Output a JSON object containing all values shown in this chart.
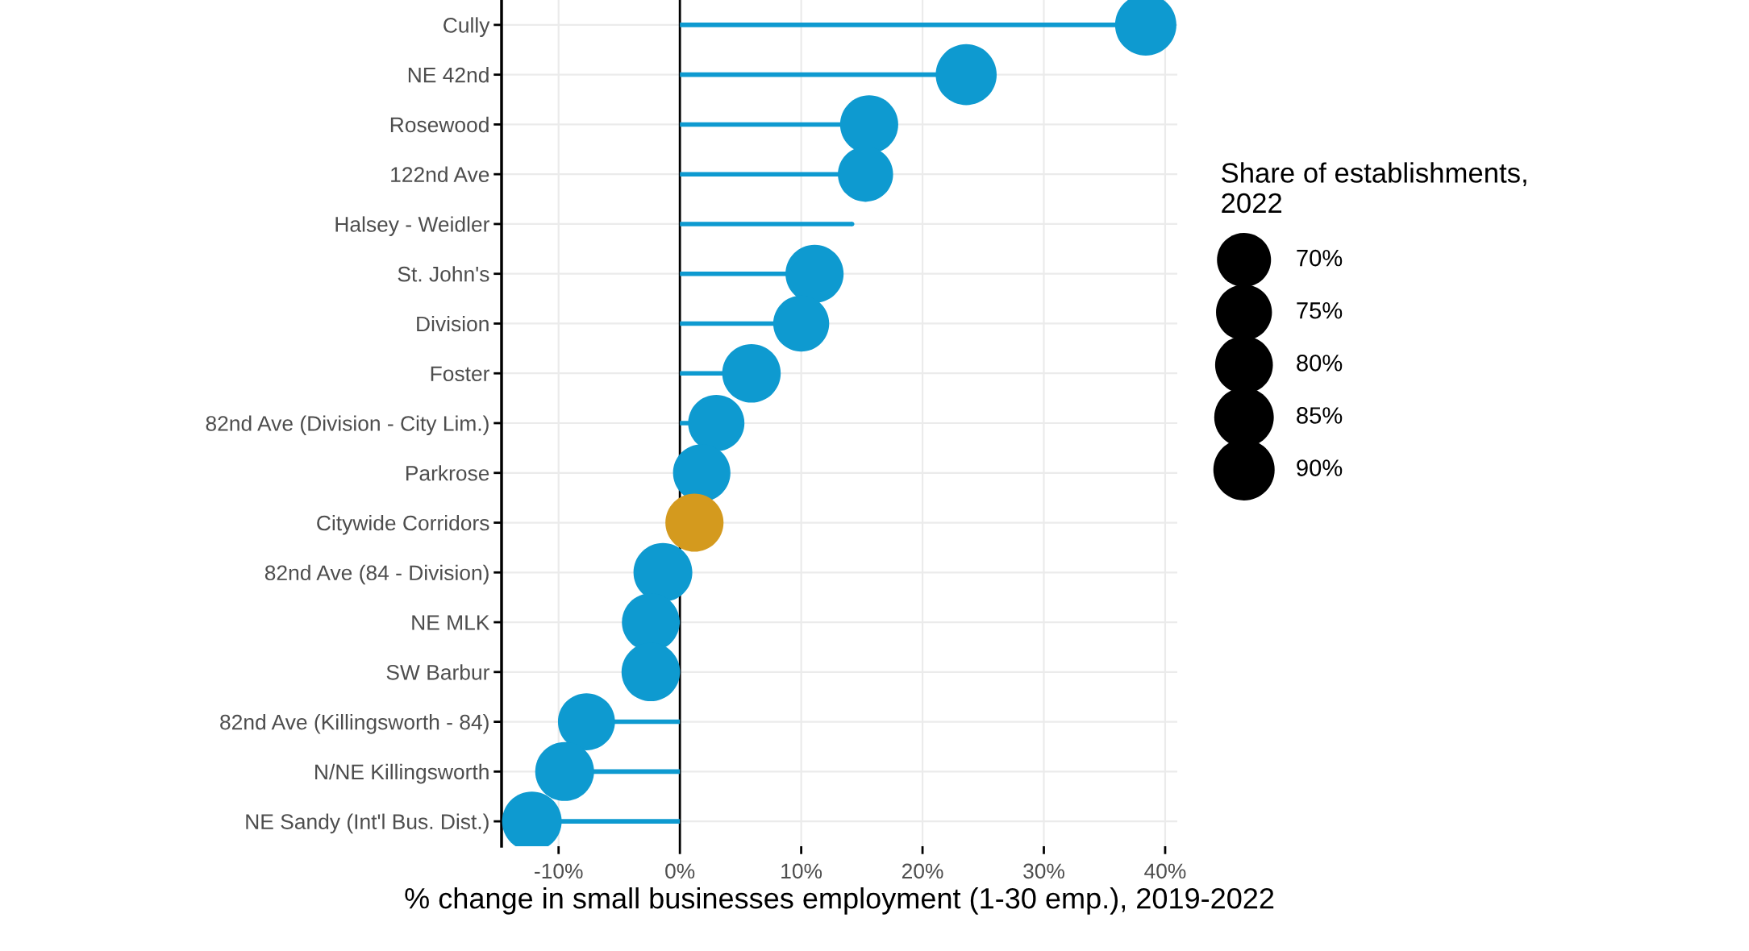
{
  "chart_data": {
    "type": "lollipop",
    "categories": [
      "Cully",
      "NE 42nd",
      "Rosewood",
      "122nd Ave",
      "Halsey - Weidler",
      "St. John's",
      "Division",
      "Foster",
      "82nd Ave (Division - City Lim.)",
      "Parkrose",
      "Citywide Corridors",
      "82nd Ave (84 - Division)",
      "NE MLK",
      "SW Barbur",
      "82nd Ave (Killingsworth - 84)",
      "N/NE Killingsworth",
      "NE Sandy (Int'l Bus. Dist.)"
    ],
    "values": [
      38.4,
      23.6,
      15.6,
      15.3,
      14.2,
      11.1,
      10.0,
      5.9,
      3.0,
      1.8,
      1.2,
      -1.4,
      -2.4,
      -2.4,
      -7.7,
      -9.5,
      -12.2
    ],
    "sizes": [
      90,
      89,
      81,
      73,
      null,
      81,
      75,
      82,
      76,
      79,
      81,
      83,
      80,
      82,
      78,
      83,
      85
    ],
    "size_legend": [
      {
        "value": 70,
        "label": "70%"
      },
      {
        "value": 75,
        "label": "75%"
      },
      {
        "value": 80,
        "label": "80%"
      },
      {
        "value": 85,
        "label": "85%"
      },
      {
        "value": 90,
        "label": "90%"
      }
    ],
    "colors": [
      "#0e9ad0",
      "#0e9ad0",
      "#0e9ad0",
      "#0e9ad0",
      "#0e9ad0",
      "#0e9ad0",
      "#0e9ad0",
      "#0e9ad0",
      "#0e9ad0",
      "#0e9ad0",
      "#d49a1e",
      "#0e9ad0",
      "#0e9ad0",
      "#0e9ad0",
      "#0e9ad0",
      "#0e9ad0",
      "#0e9ad0"
    ],
    "orientation": "horizontal",
    "xlabel": "% change in small businesses employment (1-30 emp.), 2019-2022",
    "legend_title": "Share of establishments,\n2022",
    "xlim": [
      -14.7,
      41
    ],
    "xticks": [
      {
        "value": -10,
        "label": "-10%"
      },
      {
        "value": 0,
        "label": "0%"
      },
      {
        "value": 10,
        "label": "10%"
      },
      {
        "value": 20,
        "label": "20%"
      },
      {
        "value": 30,
        "label": "30%"
      },
      {
        "value": 40,
        "label": "40%"
      }
    ],
    "ref_lines": [
      {
        "axis": "x",
        "value": 0,
        "label": null,
        "color": "#000000"
      }
    ],
    "grid": true
  }
}
